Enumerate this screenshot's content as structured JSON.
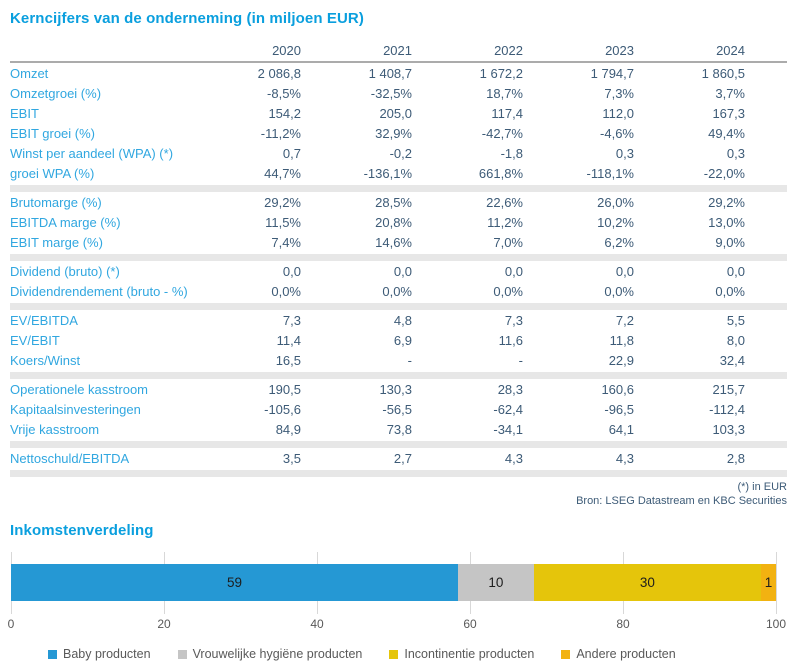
{
  "table": {
    "title": "Kerncijfers van de onderneming (in miljoen EUR)",
    "years": [
      "2020",
      "2021",
      "2022",
      "2023",
      "2024"
    ],
    "sections": [
      {
        "rows": [
          {
            "label": "Omzet",
            "values": [
              "2 086,8",
              "1 408,7",
              "1 672,2",
              "1 794,7",
              "1 860,5"
            ]
          },
          {
            "label": "Omzetgroei (%)",
            "values": [
              "-8,5%",
              "-32,5%",
              "18,7%",
              "7,3%",
              "3,7%"
            ]
          },
          {
            "label": "EBIT",
            "values": [
              "154,2",
              "205,0",
              "117,4",
              "112,0",
              "167,3"
            ]
          },
          {
            "label": "EBIT groei (%)",
            "values": [
              "-11,2%",
              "32,9%",
              "-42,7%",
              "-4,6%",
              "49,4%"
            ]
          },
          {
            "label": "Winst per aandeel (WPA) (*)",
            "values": [
              "0,7",
              "-0,2",
              "-1,8",
              "0,3",
              "0,3"
            ]
          },
          {
            "label": "groei WPA (%)",
            "values": [
              "44,7%",
              "-136,1%",
              "661,8%",
              "-118,1%",
              "-22,0%"
            ]
          }
        ]
      },
      {
        "rows": [
          {
            "label": "Brutomarge (%)",
            "values": [
              "29,2%",
              "28,5%",
              "22,6%",
              "26,0%",
              "29,2%"
            ]
          },
          {
            "label": "EBITDA marge (%)",
            "values": [
              "11,5%",
              "20,8%",
              "11,2%",
              "10,2%",
              "13,0%"
            ]
          },
          {
            "label": "EBIT marge (%)",
            "values": [
              "7,4%",
              "14,6%",
              "7,0%",
              "6,2%",
              "9,0%"
            ]
          }
        ]
      },
      {
        "rows": [
          {
            "label": "Dividend (bruto) (*)",
            "values": [
              "0,0",
              "0,0",
              "0,0",
              "0,0",
              "0,0"
            ]
          },
          {
            "label": "Dividendrendement (bruto - %)",
            "values": [
              "0,0%",
              "0,0%",
              "0,0%",
              "0,0%",
              "0,0%"
            ]
          }
        ]
      },
      {
        "rows": [
          {
            "label": "EV/EBITDA",
            "values": [
              "7,3",
              "4,8",
              "7,3",
              "7,2",
              "5,5"
            ]
          },
          {
            "label": "EV/EBIT",
            "values": [
              "11,4",
              "6,9",
              "11,6",
              "11,8",
              "8,0"
            ]
          },
          {
            "label": "Koers/Winst",
            "values": [
              "16,5",
              "-",
              "-",
              "22,9",
              "32,4"
            ]
          }
        ]
      },
      {
        "rows": [
          {
            "label": "Operationele kasstroom",
            "values": [
              "190,5",
              "130,3",
              "28,3",
              "160,6",
              "215,7"
            ]
          },
          {
            "label": "Kapitaalsinvesteringen",
            "values": [
              "-105,6",
              "-56,5",
              "-62,4",
              "-96,5",
              "-112,4"
            ]
          },
          {
            "label": "Vrije kasstroom",
            "values": [
              "84,9",
              "73,8",
              "-34,1",
              "64,1",
              "103,3"
            ]
          }
        ]
      },
      {
        "rows": [
          {
            "label": "Nettoschuld/EBITDA",
            "values": [
              "3,5",
              "2,7",
              "4,3",
              "4,3",
              "2,8"
            ]
          }
        ]
      }
    ],
    "footnotes": [
      "(*) in EUR",
      "Bron: LSEG Datastream en KBC Securities"
    ]
  },
  "chart": {
    "title": "Inkomstenverdeling",
    "segments": [
      {
        "label": "Baby producten",
        "value": 59,
        "color": "#2598d4"
      },
      {
        "label": "Vrouwelijke hygiëne producten",
        "value": 10,
        "color": "#c5c5c5"
      },
      {
        "label": "Incontinentie producten",
        "value": 30,
        "color": "#e5c50b"
      },
      {
        "label": "Andere producten",
        "value": 1,
        "color": "#f2b211"
      }
    ],
    "axis_ticks": [
      0,
      20,
      40,
      60,
      80,
      100
    ]
  },
  "chart_data": {
    "type": "bar",
    "orientation": "horizontal",
    "stacked": true,
    "title": "Inkomstenverdeling",
    "categories": [
      "Inkomstenverdeling"
    ],
    "series": [
      {
        "name": "Baby producten",
        "values": [
          59
        ],
        "color": "#2598d4"
      },
      {
        "name": "Vrouwelijke hygiëne producten",
        "values": [
          10
        ],
        "color": "#c5c5c5"
      },
      {
        "name": "Incontinentie producten",
        "values": [
          30
        ],
        "color": "#e5c50b"
      },
      {
        "name": "Andere producten",
        "values": [
          1
        ],
        "color": "#f2b211"
      }
    ],
    "xlabel": "",
    "ylabel": "",
    "xlim": [
      0,
      100
    ],
    "xticks": [
      0,
      20,
      40,
      60,
      80,
      100
    ],
    "grid": true,
    "legend_position": "bottom",
    "data_labels": [
      59,
      10,
      30,
      1
    ]
  },
  "colors": {
    "title_blue": "#0a9fde",
    "label_blue": "#31a7e0",
    "value_navy": "#3d5b77",
    "separator_gray": "#e7e7e7"
  }
}
